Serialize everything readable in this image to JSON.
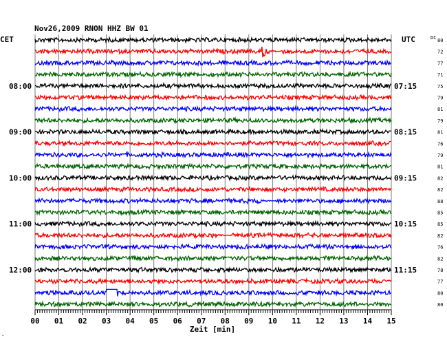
{
  "chart_data": {
    "type": "line",
    "title": "Nov26,2009   RNON HHZ BW 01",
    "left_axis_label": "CET",
    "right_axis_label": "UTC",
    "dc_label": "DC",
    "xlabel": "Zeit [min]",
    "xlim": [
      0,
      15
    ],
    "x_ticks": [
      "00",
      "01",
      "02",
      "03",
      "04",
      "05",
      "06",
      "07",
      "08",
      "09",
      "10",
      "11",
      "12",
      "13",
      "14",
      "15"
    ],
    "trace_colors": [
      "#000000",
      "#ff0000",
      "#0000ff",
      "#006400"
    ],
    "dc_values": [
      "80",
      "72",
      "77",
      "71",
      "75",
      "79",
      "81",
      "79",
      "81",
      "76",
      "79",
      "81",
      "82",
      "82",
      "88",
      "85",
      "85",
      "82",
      "76",
      "82",
      "78",
      "77",
      "80",
      "80"
    ],
    "left_hour_labels": [
      {
        "trace": 4,
        "text": "08:00"
      },
      {
        "trace": 8,
        "text": "09:00"
      },
      {
        "trace": 12,
        "text": "10:00"
      },
      {
        "trace": 16,
        "text": "11:00"
      },
      {
        "trace": 20,
        "text": "12:00"
      }
    ],
    "right_hour_labels": [
      {
        "trace": 4,
        "text": "07:15"
      },
      {
        "trace": 8,
        "text": "08:15"
      },
      {
        "trace": 12,
        "text": "09:15"
      },
      {
        "trace": 16,
        "text": "10:15"
      },
      {
        "trace": 20,
        "text": "11:15"
      }
    ],
    "trace_count": 24,
    "grid": true,
    "events": [
      {
        "trace": 1,
        "minute": 9.6,
        "amplitude": "large"
      },
      {
        "trace": 14,
        "minute": 9.4,
        "amplitude": "medium"
      },
      {
        "trace": 17,
        "minute": 7.5,
        "amplitude": "medium"
      },
      {
        "trace": 22,
        "minute": 3.0,
        "amplitude": "step"
      }
    ]
  }
}
